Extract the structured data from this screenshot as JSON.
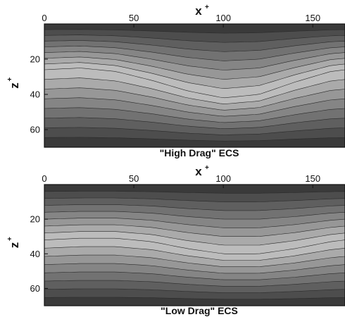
{
  "chart_data": [
    {
      "type": "contour",
      "caption": "\"High Drag\" ECS",
      "xlabel": "x",
      "xlabel_sup": "+",
      "ylabel": "z",
      "ylabel_sup": "+",
      "xlim": [
        0,
        168
      ],
      "ylim": [
        0,
        70
      ],
      "y_axis_inverted": true,
      "x_axis_position": "top",
      "x_ticks": [
        0,
        50,
        100,
        150
      ],
      "y_ticks": [
        20,
        40,
        60
      ],
      "colormap": "grayscale, dark at channel walls, light at center band",
      "colors": {
        "min": "#3a3a3a",
        "max": "#cfcfcf"
      },
      "levels": 8,
      "centerline": [
        {
          "x": 0,
          "z": 26
        },
        {
          "x": 20,
          "z": 25
        },
        {
          "x": 40,
          "z": 27
        },
        {
          "x": 60,
          "z": 32
        },
        {
          "x": 80,
          "z": 38
        },
        {
          "x": 100,
          "z": 42
        },
        {
          "x": 120,
          "z": 40
        },
        {
          "x": 140,
          "z": 33
        },
        {
          "x": 160,
          "z": 27
        },
        {
          "x": 168,
          "z": 26
        }
      ]
    },
    {
      "type": "contour",
      "caption": "\"Low Drag\" ECS",
      "xlabel": "x",
      "xlabel_sup": "+",
      "ylabel": "z",
      "ylabel_sup": "+",
      "xlim": [
        0,
        168
      ],
      "ylim": [
        0,
        70
      ],
      "y_axis_inverted": true,
      "x_axis_position": "top",
      "x_ticks": [
        0,
        50,
        100,
        150
      ],
      "y_ticks": [
        20,
        40,
        60
      ],
      "colormap": "grayscale, dark at channel walls, light at center band",
      "colors": {
        "min": "#3a3a3a",
        "max": "#cfcfcf"
      },
      "levels": 8,
      "centerline": [
        {
          "x": 0,
          "z": 32
        },
        {
          "x": 20,
          "z": 31
        },
        {
          "x": 40,
          "z": 31
        },
        {
          "x": 60,
          "z": 33
        },
        {
          "x": 80,
          "z": 37
        },
        {
          "x": 100,
          "z": 40
        },
        {
          "x": 120,
          "z": 40
        },
        {
          "x": 140,
          "z": 37
        },
        {
          "x": 160,
          "z": 33
        },
        {
          "x": 168,
          "z": 32
        }
      ]
    }
  ]
}
